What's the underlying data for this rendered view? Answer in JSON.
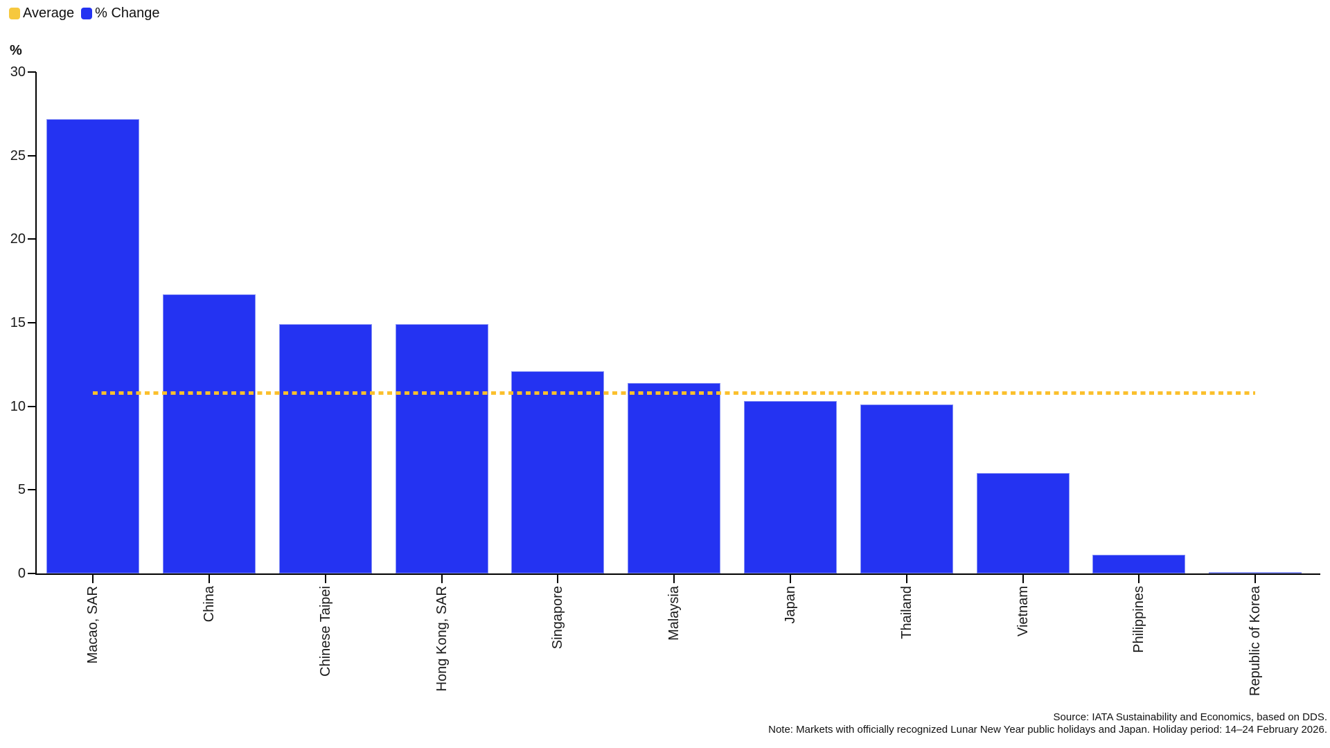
{
  "legend": {
    "items": [
      {
        "label": "Average",
        "color": "#F6C83E",
        "marker": "average-swatch"
      },
      {
        "label": "% Change",
        "color": "#2433F2",
        "marker": "bar-swatch"
      }
    ]
  },
  "chart_data": {
    "type": "bar",
    "title": "",
    "ylabel": "%",
    "xlabel": "",
    "ylim": [
      0,
      30
    ],
    "yticks": [
      0,
      5,
      10,
      15,
      20,
      25,
      30
    ],
    "grid": false,
    "legend_position": "top-left",
    "categories": [
      "Macao, SAR",
      "China",
      "Chinese Taipei",
      "Hong Kong, SAR",
      "Singapore",
      "Malaysia",
      "Japan",
      "Thailand",
      "Vietnam",
      "Philippines",
      "Republic of Korea"
    ],
    "series": [
      {
        "name": "% Change",
        "type": "bar",
        "color": "#2433F2",
        "values": [
          27.2,
          16.7,
          14.9,
          14.9,
          12.1,
          11.4,
          10.3,
          10.1,
          6.0,
          1.1,
          0.1
        ]
      },
      {
        "name": "Average",
        "type": "dotted-line",
        "color": "#FBC02D",
        "value": 10.8
      }
    ]
  },
  "footer": {
    "source": "Source: IATA Sustainability and Economics, based on DDS.",
    "note": "Note: Markets with officially recognized Lunar New Year public holidays and Japan. Holiday period: 14–24 February 2026."
  }
}
